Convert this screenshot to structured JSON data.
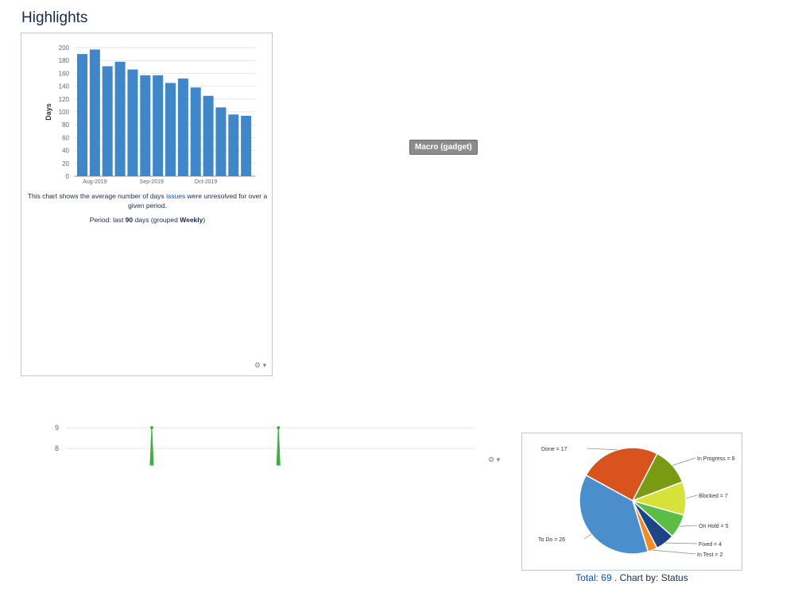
{
  "page": {
    "title": "Highlights"
  },
  "tooltip": {
    "label": "Macro (gadget)"
  },
  "gadget1": {
    "caption_before_link": "This chart shows the average number of days ",
    "caption_link": "issues",
    "caption_after_link": " were unresolved for over a given period.",
    "period_prefix": "Period: last ",
    "period_days": "90",
    "period_mid": " days (grouped ",
    "period_group": "Weekly",
    "period_suffix": ")",
    "gear_label": "⚙ ▾"
  },
  "gadget2": {
    "gear_label": "⚙ ▾"
  },
  "pie_footer": {
    "total_link": "Total: 69",
    "chart_by": ". Chart by: Status"
  },
  "chart_data": [
    {
      "type": "bar",
      "ylabel": "Days",
      "ylim": [
        0,
        200
      ],
      "yticks": [
        0,
        20,
        40,
        60,
        80,
        100,
        120,
        140,
        160,
        180,
        200
      ],
      "xtick_labels": [
        {
          "label": "Aug-2019",
          "index": 1
        },
        {
          "label": "Sep-2019",
          "index": 5.5
        },
        {
          "label": "Oct-2019",
          "index": 9.8
        }
      ],
      "values": [
        190,
        197,
        171,
        178,
        166,
        157,
        157,
        145,
        152,
        138,
        125,
        107,
        96,
        94
      ],
      "color": "#3f87c9",
      "grid": true
    },
    {
      "type": "line",
      "yticks": [
        8,
        9
      ],
      "color": "#3fae49",
      "spikes": [
        {
          "x_fraction": 0.21,
          "value": 9
        },
        {
          "x_fraction": 0.52,
          "value": 9
        }
      ],
      "grid": true
    },
    {
      "type": "pie",
      "total": 69,
      "slices": [
        {
          "label": "Done = 17",
          "value": 17,
          "color": "#d9531e"
        },
        {
          "label": "In Progress = 8",
          "value": 8,
          "color": "#7a9a14"
        },
        {
          "label": "Blocked = 7",
          "value": 7,
          "color": "#d6e23a"
        },
        {
          "label": "On Hold = 5",
          "value": 5,
          "color": "#5cbd45"
        },
        {
          "label": "Fixed = 4",
          "value": 4,
          "color": "#1c4587"
        },
        {
          "label": "In Test = 2",
          "value": 2,
          "color": "#f58a2a"
        },
        {
          "label": "To Do = 26",
          "value": 26,
          "color": "#4a8fcb"
        }
      ]
    }
  ]
}
